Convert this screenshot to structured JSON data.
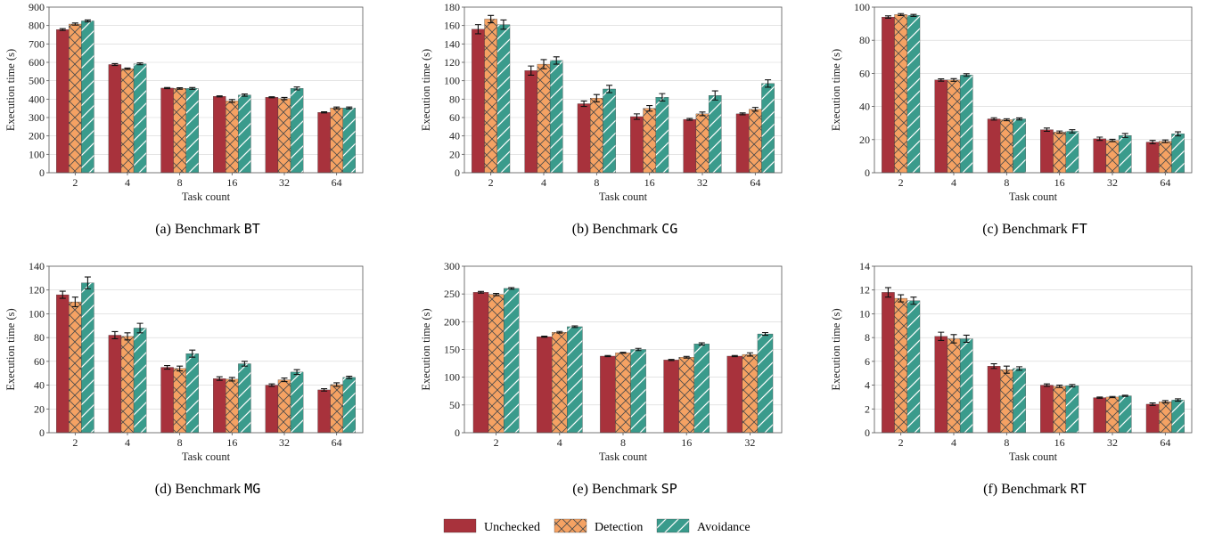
{
  "colors": {
    "unchecked": "#a8323c",
    "detection": "#f5a263",
    "avoidance": "#3a9b8c"
  },
  "legend": {
    "items": [
      {
        "key": "unchecked",
        "label": "Unchecked",
        "pattern": "solid"
      },
      {
        "key": "detection",
        "label": "Detection",
        "pattern": "crosshatch"
      },
      {
        "key": "avoidance",
        "label": "Avoidance",
        "pattern": "diagonal"
      }
    ]
  },
  "chart_data": [
    {
      "type": "bar",
      "panel": "a",
      "caption_prefix": "(a) Benchmark",
      "caption_code": "BT",
      "xlabel": "Task count",
      "ylabel": "Execution time (s)",
      "categories": [
        "2",
        "4",
        "8",
        "16",
        "32",
        "64"
      ],
      "ylim": [
        0,
        900
      ],
      "yticks": [
        0,
        100,
        200,
        300,
        400,
        500,
        600,
        700,
        800,
        900
      ],
      "grid": true,
      "series": [
        {
          "name": "Unchecked",
          "values": [
            778,
            588,
            460,
            415,
            410,
            328
          ],
          "errors": [
            5,
            5,
            3,
            3,
            3,
            3
          ]
        },
        {
          "name": "Detection",
          "values": [
            808,
            565,
            458,
            390,
            403,
            352
          ],
          "errors": [
            6,
            4,
            4,
            8,
            6,
            5
          ]
        },
        {
          "name": "Avoidance",
          "values": [
            825,
            592,
            458,
            422,
            458,
            352
          ],
          "errors": [
            5,
            5,
            5,
            6,
            8,
            5
          ]
        }
      ]
    },
    {
      "type": "bar",
      "panel": "b",
      "caption_prefix": "(b) Benchmark",
      "caption_code": "CG",
      "xlabel": "Task count",
      "ylabel": "Execution time (s)",
      "categories": [
        "2",
        "4",
        "8",
        "16",
        "32",
        "64"
      ],
      "ylim": [
        0,
        180
      ],
      "yticks": [
        0,
        20,
        40,
        60,
        80,
        100,
        120,
        140,
        160,
        180
      ],
      "grid": true,
      "series": [
        {
          "name": "Unchecked",
          "values": [
            156,
            111,
            75,
            61,
            58,
            64
          ],
          "errors": [
            5,
            5,
            3,
            3,
            1,
            1
          ]
        },
        {
          "name": "Detection",
          "values": [
            167,
            118,
            81,
            70,
            64,
            69
          ],
          "errors": [
            4,
            5,
            4,
            3,
            2,
            2
          ]
        },
        {
          "name": "Avoidance",
          "values": [
            161,
            122,
            91,
            82,
            84,
            97
          ],
          "errors": [
            5,
            4,
            4,
            4,
            5,
            4
          ]
        }
      ]
    },
    {
      "type": "bar",
      "panel": "c",
      "caption_prefix": "(c) Benchmark",
      "caption_code": "FT",
      "xlabel": "Task count",
      "ylabel": "Execution time (s)",
      "categories": [
        "2",
        "4",
        "8",
        "16",
        "32",
        "64"
      ],
      "ylim": [
        0,
        100
      ],
      "yticks": [
        0,
        20,
        40,
        60,
        80,
        100
      ],
      "grid": true,
      "series": [
        {
          "name": "Unchecked",
          "values": [
            94,
            56,
            32.5,
            26,
            20.5,
            18.5
          ],
          "errors": [
            0.7,
            0.7,
            0.7,
            1.0,
            1.0,
            1.0
          ]
        },
        {
          "name": "Detection",
          "values": [
            95.5,
            56,
            32,
            24.5,
            19.5,
            19
          ],
          "errors": [
            0.6,
            0.8,
            0.6,
            0.7,
            0.7,
            0.8
          ]
        },
        {
          "name": "Avoidance",
          "values": [
            95,
            59,
            32.5,
            25,
            22.5,
            23.5
          ],
          "errors": [
            0.6,
            0.8,
            0.6,
            1.0,
            1.2,
            1.2
          ]
        }
      ]
    },
    {
      "type": "bar",
      "panel": "d",
      "caption_prefix": "(d) Benchmark",
      "caption_code": "MG",
      "xlabel": "Task count",
      "ylabel": "Execution time (s)",
      "categories": [
        "2",
        "4",
        "8",
        "16",
        "32",
        "64"
      ],
      "ylim": [
        0,
        140
      ],
      "yticks": [
        0,
        20,
        40,
        60,
        80,
        100,
        120,
        140
      ],
      "grid": true,
      "series": [
        {
          "name": "Unchecked",
          "values": [
            116,
            82,
            55,
            45.5,
            40,
            36
          ],
          "errors": [
            3,
            3,
            1.5,
            1.5,
            1,
            1
          ]
        },
        {
          "name": "Detection",
          "values": [
            110,
            81,
            54,
            45,
            44.5,
            40.5
          ],
          "errors": [
            4,
            3,
            2,
            1.5,
            1.5,
            1.5
          ]
        },
        {
          "name": "Avoidance",
          "values": [
            126,
            88,
            66.5,
            58,
            51,
            46.5
          ],
          "errors": [
            5,
            4,
            3,
            2,
            2,
            1
          ]
        }
      ]
    },
    {
      "type": "bar",
      "panel": "e",
      "caption_prefix": "(e) Benchmark",
      "caption_code": "SP",
      "xlabel": "Task count",
      "ylabel": "Execution time (s)",
      "categories": [
        "2",
        "4",
        "8",
        "16",
        "32"
      ],
      "ylim": [
        0,
        300
      ],
      "yticks": [
        0,
        50,
        100,
        150,
        200,
        250,
        300
      ],
      "grid": true,
      "series": [
        {
          "name": "Unchecked",
          "values": [
            253,
            173,
            138,
            131,
            138
          ],
          "errors": [
            1.5,
            1,
            1,
            1,
            1
          ]
        },
        {
          "name": "Detection",
          "values": [
            249,
            181,
            144,
            136,
            141
          ],
          "errors": [
            2,
            1.5,
            1,
            1.5,
            3
          ]
        },
        {
          "name": "Avoidance",
          "values": [
            260,
            191,
            150,
            160,
            178
          ],
          "errors": [
            1.5,
            1.5,
            2,
            2,
            2.5
          ]
        }
      ]
    },
    {
      "type": "bar",
      "panel": "f",
      "caption_prefix": "(f) Benchmark",
      "caption_code": "RT",
      "xlabel": "Task count",
      "ylabel": "Execution time (s)",
      "categories": [
        "2",
        "4",
        "8",
        "16",
        "32",
        "64"
      ],
      "ylim": [
        0,
        14
      ],
      "yticks": [
        0,
        2,
        4,
        6,
        8,
        10,
        12,
        14
      ],
      "grid": true,
      "series": [
        {
          "name": "Unchecked",
          "values": [
            11.8,
            8.1,
            5.6,
            4.0,
            2.95,
            2.4
          ],
          "errors": [
            0.4,
            0.35,
            0.2,
            0.1,
            0.05,
            0.1
          ]
        },
        {
          "name": "Detection",
          "values": [
            11.3,
            7.9,
            5.3,
            3.9,
            3.0,
            2.6
          ],
          "errors": [
            0.3,
            0.35,
            0.3,
            0.1,
            0.05,
            0.1
          ]
        },
        {
          "name": "Avoidance",
          "values": [
            11.1,
            7.9,
            5.4,
            3.95,
            3.1,
            2.75
          ],
          "errors": [
            0.3,
            0.3,
            0.15,
            0.1,
            0.05,
            0.1
          ]
        }
      ]
    }
  ]
}
